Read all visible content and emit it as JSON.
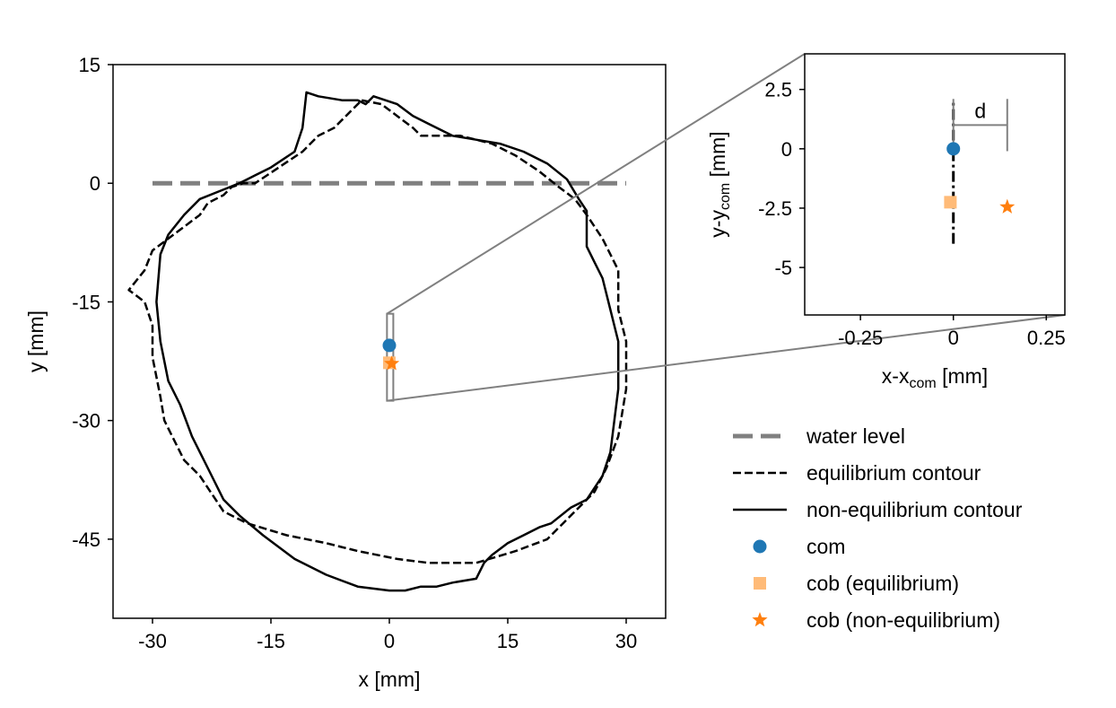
{
  "chart_data": [
    {
      "type": "line",
      "id": "main",
      "xlabel": "x [mm]",
      "ylabel": "y [mm]",
      "xlim": [
        -35,
        35
      ],
      "ylim": [
        -55,
        15
      ],
      "xticks": [
        -30,
        -15,
        0,
        15,
        30
      ],
      "xtick_labels": [
        "-30",
        "-15",
        "0",
        "15",
        "30"
      ],
      "yticks": [
        15,
        0,
        -15,
        -30,
        -45
      ],
      "ytick_labels": [
        "15",
        "0",
        "-15",
        "-30",
        "-45"
      ],
      "series": [
        {
          "name": "water level",
          "style": "dashed-thick",
          "color": "#808080",
          "x": [
            -30,
            30
          ],
          "y": [
            0,
            0
          ]
        },
        {
          "name": "equilibrium contour",
          "style": "dashed",
          "color": "#000000",
          "x": [
            -3.5,
            -1,
            3,
            4,
            6,
            9,
            13,
            16,
            19,
            21.5,
            23.5,
            25,
            27,
            28,
            29,
            29,
            30,
            30,
            29,
            27.5,
            26,
            24,
            20,
            16,
            11,
            5,
            1,
            -4,
            -8,
            -13,
            -18,
            -21,
            -24,
            -26,
            -27.5,
            -28.5,
            -29,
            -30,
            -30,
            -31,
            -33,
            -31,
            -30,
            -28,
            -26,
            -24,
            -23,
            -21,
            -20,
            -18.5,
            -17,
            -14,
            -12.5,
            -11,
            -9,
            -7,
            -5,
            -3.5
          ],
          "y": [
            10.5,
            10,
            7,
            6,
            6,
            6,
            5,
            3.5,
            1.5,
            -0.5,
            -2,
            -4,
            -7,
            -9,
            -11,
            -16,
            -20,
            -26,
            -32,
            -36,
            -39,
            -41,
            -45,
            -46.5,
            -48,
            -48,
            -47.5,
            -46.5,
            -45.5,
            -44.5,
            -43,
            -41.5,
            -37,
            -35,
            -32,
            -30,
            -27,
            -22,
            -18,
            -15,
            -13.5,
            -11,
            -8.5,
            -7,
            -5.5,
            -4,
            -2.5,
            -1.5,
            -0.5,
            0,
            0,
            2,
            3,
            4,
            6,
            7,
            9,
            10.5
          ]
        },
        {
          "name": "non-equilibrium contour",
          "style": "solid",
          "color": "#000000",
          "x": [
            -10.5,
            -9,
            -6,
            -4,
            -3,
            -2,
            1,
            3,
            5,
            8,
            11,
            14,
            17,
            20,
            22.5,
            24,
            25,
            25,
            26,
            27,
            28,
            29,
            29,
            28.5,
            28,
            27,
            25,
            23,
            20.5,
            19,
            17,
            15,
            13,
            12,
            11,
            8,
            6,
            4,
            2,
            0,
            -4,
            -8,
            -12,
            -16,
            -19,
            -21,
            -23,
            -25,
            -26.5,
            -28,
            -29,
            -29.5,
            -29,
            -28,
            -26,
            -24,
            -21.5,
            -19,
            -17,
            -15,
            -12,
            -11,
            -10.5
          ],
          "y": [
            11.5,
            11,
            10.5,
            10.5,
            10,
            11,
            10,
            8.5,
            7.5,
            6,
            5.5,
            5,
            4,
            2.5,
            0.5,
            -2,
            -3.5,
            -8,
            -10,
            -12,
            -16,
            -20,
            -26,
            -30,
            -34,
            -37,
            -40,
            -41,
            -43,
            -43.5,
            -44.5,
            -45.5,
            -47,
            -48,
            -50,
            -50.5,
            -51,
            -51,
            -51.5,
            -51.5,
            -51,
            -49.5,
            -47.5,
            -44.5,
            -42,
            -40,
            -36,
            -32,
            -28,
            -25,
            -20,
            -15,
            -9,
            -6.5,
            -4,
            -2,
            -1,
            0,
            1,
            2,
            4,
            7,
            11.5
          ]
        }
      ],
      "points": [
        {
          "name": "com",
          "x": 0,
          "y": -20.5,
          "marker": "circle",
          "color": "#1f77b4"
        },
        {
          "name": "cob (equilibrium)",
          "x": 0,
          "y": -22.7,
          "marker": "square",
          "color": "#ffbb78"
        },
        {
          "name": "cob (non-equilibrium)",
          "x": 0.3,
          "y": -22.8,
          "marker": "star",
          "color": "#ff7f0e"
        }
      ],
      "zoom_box": {
        "x": [
          -0.3,
          0.5
        ],
        "y": [
          -27.5,
          -16.5
        ]
      }
    },
    {
      "type": "scatter",
      "id": "inset",
      "xlabel": "x-x",
      "xlabel_sub": "com",
      "xlabel_tail": " [mm]",
      "ylabel": "y-y",
      "ylabel_sub": "com",
      "ylabel_tail": " [mm]",
      "xlim": [
        -0.4,
        0.3
      ],
      "ylim": [
        -7,
        4
      ],
      "xticks": [
        -0.25,
        0,
        0.25
      ],
      "xtick_labels": [
        "-0.25",
        "0",
        "0.25"
      ],
      "yticks": [
        2.5,
        0,
        -2.5,
        -5
      ],
      "ytick_labels": [
        "2.5",
        "0",
        "-2.5",
        "-5"
      ],
      "points": [
        {
          "name": "com",
          "x": 0,
          "y": 0,
          "marker": "circle",
          "color": "#1f77b4"
        },
        {
          "name": "cob (equilibrium)",
          "x": -0.008,
          "y": -2.25,
          "marker": "square",
          "color": "#ffbb78"
        },
        {
          "name": "cob (non-equilibrium)",
          "x": 0.145,
          "y": -2.45,
          "marker": "star",
          "color": "#ff7f0e"
        }
      ],
      "dashdot_line": {
        "x": 0,
        "y": [
          -4,
          2
        ]
      },
      "distance_annotation": {
        "label": "d",
        "x": [
          0,
          0.145
        ],
        "y": 1,
        "y_extent": [
          -0.1,
          2.1
        ]
      }
    }
  ],
  "legend": [
    {
      "label": "water level",
      "style": "dashed-thick",
      "color": "#808080"
    },
    {
      "label": "equilibrium contour",
      "style": "dashed",
      "color": "#000000"
    },
    {
      "label": "non-equilibrium contour",
      "style": "solid",
      "color": "#000000"
    },
    {
      "label": "com",
      "style": "circle",
      "color": "#1f77b4"
    },
    {
      "label": "cob (equilibrium)",
      "style": "square",
      "color": "#ffbb78"
    },
    {
      "label": "cob (non-equilibrium)",
      "style": "star",
      "color": "#ff7f0e"
    }
  ]
}
